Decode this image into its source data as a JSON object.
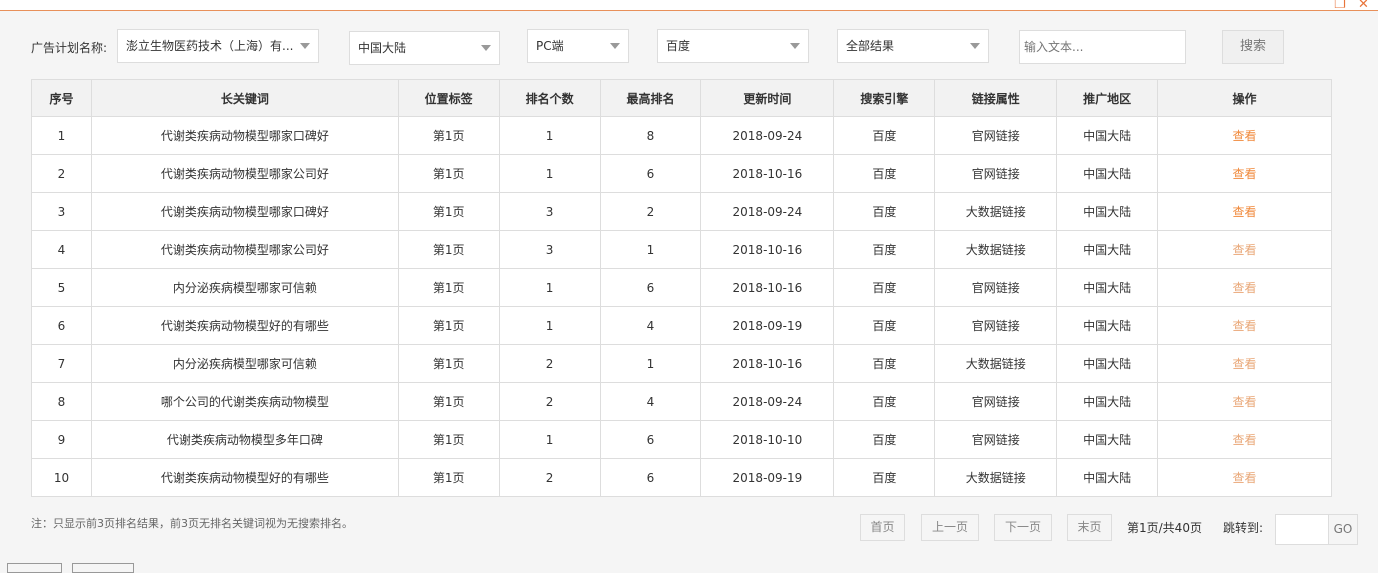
{
  "window": {
    "restore_icon": "restore-icon",
    "close_icon": "close-icon"
  },
  "filters": {
    "plan_label": "广告计划名称:",
    "plan_value": "澎立生物医药技术（上海）有...",
    "region_value": "中国大陆",
    "device_value": "PC端",
    "engine_value": "百度",
    "result_value": "全部结果",
    "search_placeholder": "输入文本...",
    "search_button": "搜索"
  },
  "table": {
    "headers": [
      "序号",
      "长关键词",
      "位置标签",
      "排名个数",
      "最高排名",
      "更新时间",
      "搜索引擎",
      "链接属性",
      "推广地区",
      "操作"
    ],
    "rows": [
      [
        "1",
        "代谢类疾病动物模型哪家口碑好",
        "第1页",
        "1",
        "8",
        "2018-09-24",
        "百度",
        "官网链接",
        "中国大陆",
        "查看"
      ],
      [
        "2",
        "代谢类疾病动物模型哪家公司好",
        "第1页",
        "1",
        "6",
        "2018-10-16",
        "百度",
        "官网链接",
        "中国大陆",
        "查看"
      ],
      [
        "3",
        "代谢类疾病动物模型哪家口碑好",
        "第1页",
        "3",
        "2",
        "2018-09-24",
        "百度",
        "大数据链接",
        "中国大陆",
        "查看"
      ],
      [
        "4",
        "代谢类疾病动物模型哪家公司好",
        "第1页",
        "3",
        "1",
        "2018-10-16",
        "百度",
        "大数据链接",
        "中国大陆",
        "查看"
      ],
      [
        "5",
        "内分泌疾病模型哪家可信赖",
        "第1页",
        "1",
        "6",
        "2018-10-16",
        "百度",
        "官网链接",
        "中国大陆",
        "查看"
      ],
      [
        "6",
        "代谢类疾病动物模型好的有哪些",
        "第1页",
        "1",
        "4",
        "2018-09-19",
        "百度",
        "官网链接",
        "中国大陆",
        "查看"
      ],
      [
        "7",
        "内分泌疾病模型哪家可信赖",
        "第1页",
        "2",
        "1",
        "2018-10-16",
        "百度",
        "大数据链接",
        "中国大陆",
        "查看"
      ],
      [
        "8",
        "哪个公司的代谢类疾病动物模型",
        "第1页",
        "2",
        "4",
        "2018-09-24",
        "百度",
        "官网链接",
        "中国大陆",
        "查看"
      ],
      [
        "9",
        "代谢类疾病动物模型多年口碑",
        "第1页",
        "1",
        "6",
        "2018-10-10",
        "百度",
        "官网链接",
        "中国大陆",
        "查看"
      ],
      [
        "10",
        "代谢类疾病动物模型好的有哪些",
        "第1页",
        "2",
        "6",
        "2018-09-19",
        "百度",
        "大数据链接",
        "中国大陆",
        "查看"
      ]
    ]
  },
  "footer": {
    "note": "注：只显示前3页排名结果，前3页无排名关键词视为无搜索排名。",
    "first": "首页",
    "prev": "上一页",
    "next": "下一页",
    "last": "末页",
    "page_info": "第1页/共40页",
    "jump_label": "跳转到:",
    "go": "GO"
  },
  "colors": {
    "accent": "#f08a3c",
    "border": "#dddddd"
  }
}
